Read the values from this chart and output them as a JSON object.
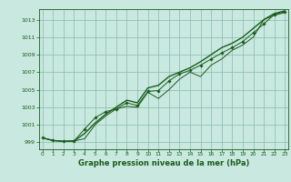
{
  "bg_color": "#c8e8e0",
  "grid_color": "#88bbaa",
  "line_color": "#1a5c1a",
  "marker_color": "#1a5c1a",
  "xlabel": "Graphe pression niveau de la mer (hPa)",
  "xlabel_color": "#1a5c1a",
  "ylabel_color": "#1a5c1a",
  "yticks": [
    999,
    1001,
    1003,
    1005,
    1007,
    1009,
    1011,
    1013
  ],
  "xticks": [
    0,
    1,
    2,
    3,
    4,
    5,
    6,
    7,
    8,
    9,
    10,
    11,
    12,
    13,
    14,
    15,
    16,
    17,
    18,
    19,
    20,
    21,
    22,
    23
  ],
  "xlim": [
    -0.3,
    23.3
  ],
  "ylim": [
    998.2,
    1014.2
  ],
  "series1": [
    999.5,
    999.2,
    999.1,
    999.15,
    999.4,
    1001.0,
    1002.0,
    1002.8,
    1003.1,
    1003.0,
    1004.7,
    1004.0,
    1005.0,
    1006.2,
    1007.0,
    1006.5,
    1007.8,
    1008.5,
    1009.5,
    1010.1,
    1011.0,
    1013.0,
    1013.5,
    1013.8
  ],
  "series2": [
    999.5,
    999.2,
    999.1,
    999.15,
    1000.5,
    1001.8,
    1002.5,
    1002.8,
    1003.5,
    1003.2,
    1004.8,
    1004.9,
    1006.0,
    1006.8,
    1007.2,
    1007.8,
    1008.5,
    1009.2,
    1009.8,
    1010.5,
    1011.5,
    1012.5,
    1013.6,
    1013.9
  ],
  "series3": [
    999.5,
    999.2,
    999.1,
    999.15,
    1000.0,
    1001.2,
    1002.2,
    1003.0,
    1003.8,
    1003.5,
    1005.2,
    1005.5,
    1006.5,
    1007.0,
    1007.5,
    1008.2,
    1009.0,
    1009.8,
    1010.3,
    1011.0,
    1012.0,
    1013.0,
    1013.7,
    1014.0
  ]
}
